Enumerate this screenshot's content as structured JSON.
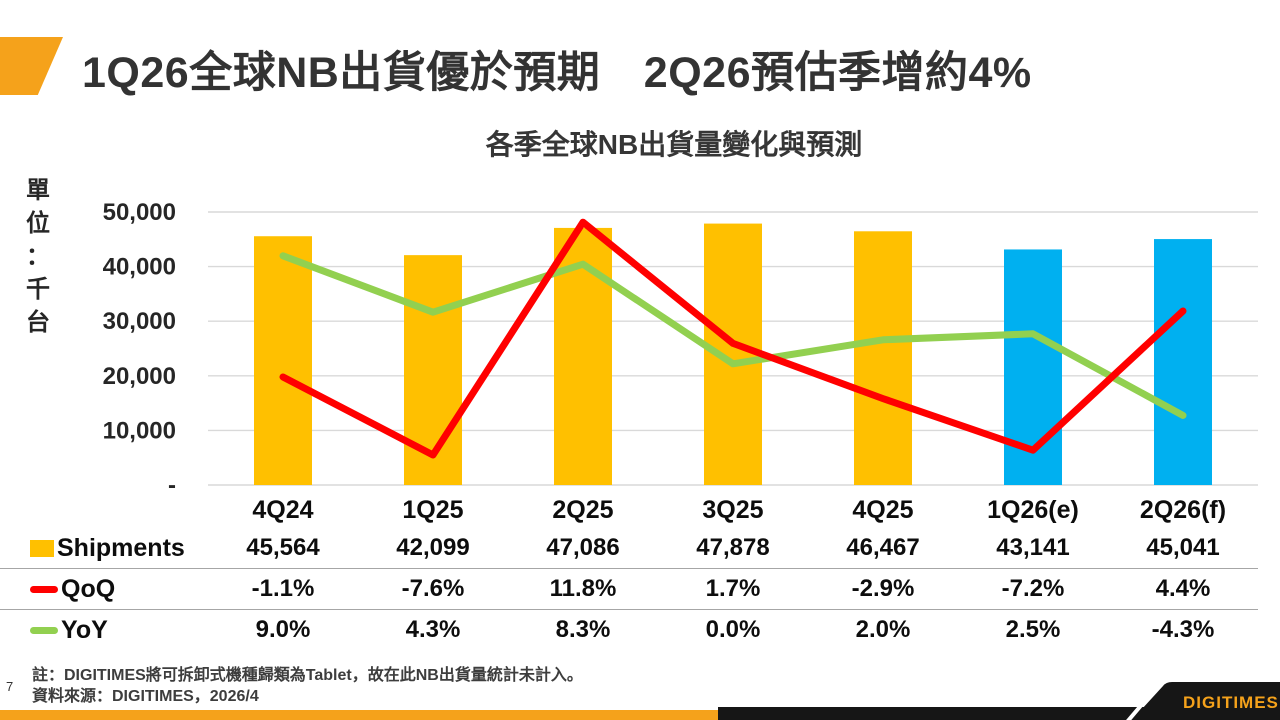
{
  "header": {
    "title": "1Q26全球NB出貨優於預期　2Q26預估季增約4%"
  },
  "chart_data": {
    "type": "combo",
    "title": "各季全球NB出貨量變化與預測",
    "unit_label": "單位：千台",
    "categories": [
      "4Q24",
      "1Q25",
      "2Q25",
      "3Q25",
      "4Q25",
      "1Q26(e)",
      "2Q26(f)"
    ],
    "bar_series": {
      "name": "Shipments",
      "values": [
        45564,
        42099,
        47086,
        47878,
        46467,
        43141,
        45041
      ],
      "forecast_start_index": 5
    },
    "line_series": [
      {
        "name": "QoQ",
        "values_pct": [
          -1.1,
          -7.6,
          11.8,
          1.7,
          -2.9,
          -7.2,
          4.4
        ]
      },
      {
        "name": "YoY",
        "values_pct": [
          9.0,
          4.3,
          8.3,
          0.0,
          2.0,
          2.5,
          -4.3
        ]
      }
    ],
    "y_axis": {
      "ticks": [
        {
          "label": "50,000",
          "value": 50000
        },
        {
          "label": "40,000",
          "value": 40000
        },
        {
          "label": "30,000",
          "value": 30000
        },
        {
          "label": "20,000",
          "value": 20000
        },
        {
          "label": "10,000",
          "value": 10000
        },
        {
          "label": "-",
          "value": 0
        }
      ],
      "max": 50000,
      "grid": true
    },
    "legend_position": "table-left"
  },
  "table": {
    "rows": [
      {
        "label": "Shipments",
        "marker": "gold-square",
        "values": [
          "45,564",
          "42,099",
          "47,086",
          "47,878",
          "46,467",
          "43,141",
          "45,041"
        ]
      },
      {
        "label": "QoQ",
        "marker": "red-line",
        "values": [
          "-1.1%",
          "-7.6%",
          "11.8%",
          "1.7%",
          "-2.9%",
          "-7.2%",
          "4.4%"
        ]
      },
      {
        "label": "YoY",
        "marker": "green-line",
        "values": [
          "9.0%",
          "4.3%",
          "8.3%",
          "0.0%",
          "2.0%",
          "2.5%",
          "-4.3%"
        ]
      }
    ]
  },
  "footer": {
    "page_number": "7",
    "note_line1": "註：DIGITIMES將可拆卸式機種歸類為Tablet，故在此NB出貨量統計未計入。",
    "note_line2": "資料來源：DIGITIMES，2026/4",
    "logo_text": "DIGITIMES"
  },
  "colors": {
    "bar_actual": "#FFC000",
    "bar_forecast": "#00B0F0",
    "qoq_line": "#FF0000",
    "yoy_line": "#92D050",
    "accent": "#F5A21B",
    "gridline": "#D9D9D9",
    "text_dark": "#262626",
    "logo_bg": "#161616"
  }
}
